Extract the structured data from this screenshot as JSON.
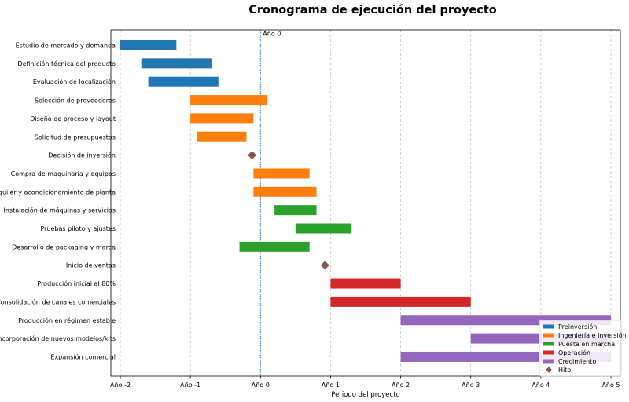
{
  "chart_data": {
    "type": "gantt",
    "title": "Cronograma de ejecución del proyecto",
    "xlabel": "Periodo del proyecto",
    "ylabel": "",
    "xlim": [
      -2,
      5
    ],
    "x_ticks": [
      {
        "value": -2,
        "label": "Año -2"
      },
      {
        "value": -1,
        "label": "Año -1"
      },
      {
        "value": 0,
        "label": "Año 0"
      },
      {
        "value": 1,
        "label": "Año 1"
      },
      {
        "value": 2,
        "label": "Año 2"
      },
      {
        "value": 3,
        "label": "Año 3"
      },
      {
        "value": 4,
        "label": "Año 4"
      },
      {
        "value": 5,
        "label": "Año 5"
      }
    ],
    "grid": "vertical dashed",
    "reference_line": {
      "x": 0,
      "label": "Año 0"
    },
    "legend_position": "bottom-right",
    "phases": [
      {
        "name": "Preinversión",
        "color": "#1f77b4"
      },
      {
        "name": "Ingeniería e inversión",
        "color": "#ff7f0e"
      },
      {
        "name": "Puesta en marcha",
        "color": "#2ca02c"
      },
      {
        "name": "Operación",
        "color": "#d62728"
      },
      {
        "name": "Crecimiento",
        "color": "#9467bd"
      }
    ],
    "milestone_legend": {
      "name": "Hito",
      "color": "#8c564b"
    },
    "tasks": [
      {
        "label": "Estudio de mercado y demanda",
        "phase": "Preinversión",
        "start": -2.0,
        "end": -1.2
      },
      {
        "label": "Definición técnica del producto",
        "phase": "Preinversión",
        "start": -1.7,
        "end": -0.7
      },
      {
        "label": "Evaluación de localización",
        "phase": "Preinversión",
        "start": -1.6,
        "end": -0.6
      },
      {
        "label": "Selección de proveedores",
        "phase": "Ingeniería e inversión",
        "start": -1.0,
        "end": 0.1
      },
      {
        "label": "Diseño de proceso y layout",
        "phase": "Ingeniería e inversión",
        "start": -1.0,
        "end": -0.1
      },
      {
        "label": "Solicitud de presupuestos",
        "phase": "Ingeniería e inversión",
        "start": -0.9,
        "end": -0.2
      },
      {
        "label": "Decisión de inversión",
        "phase": "Hito",
        "milestone": -0.12
      },
      {
        "label": "Compra de maquinaria y equipos",
        "phase": "Ingeniería e inversión",
        "start": -0.1,
        "end": 0.7
      },
      {
        "label": "Alquiler y acondicionamiento de planta",
        "phase": "Ingeniería e inversión",
        "start": -0.1,
        "end": 0.8
      },
      {
        "label": "Instalación de máquinas y servicios",
        "phase": "Puesta en marcha",
        "start": 0.2,
        "end": 0.8
      },
      {
        "label": "Pruebas piloto y ajustes",
        "phase": "Puesta en marcha",
        "start": 0.5,
        "end": 1.3
      },
      {
        "label": "Desarrollo de packaging y marca",
        "phase": "Puesta en marcha",
        "start": -0.3,
        "end": 0.7
      },
      {
        "label": "Inicio de ventas",
        "phase": "Hito",
        "milestone": 0.92
      },
      {
        "label": "Producción inicial al 80%",
        "phase": "Operación",
        "start": 1.0,
        "end": 2.0
      },
      {
        "label": "Consolidación de canales comerciales",
        "phase": "Operación",
        "start": 1.0,
        "end": 3.0
      },
      {
        "label": "Producción en régimen estable",
        "phase": "Crecimiento",
        "start": 2.0,
        "end": 5.0
      },
      {
        "label": "Incorporación de nuevos modelos/kits",
        "phase": "Crecimiento",
        "start": 3.0,
        "end": 5.0
      },
      {
        "label": "Expansión comercial",
        "phase": "Crecimiento",
        "start": 2.0,
        "end": 5.0
      }
    ]
  }
}
